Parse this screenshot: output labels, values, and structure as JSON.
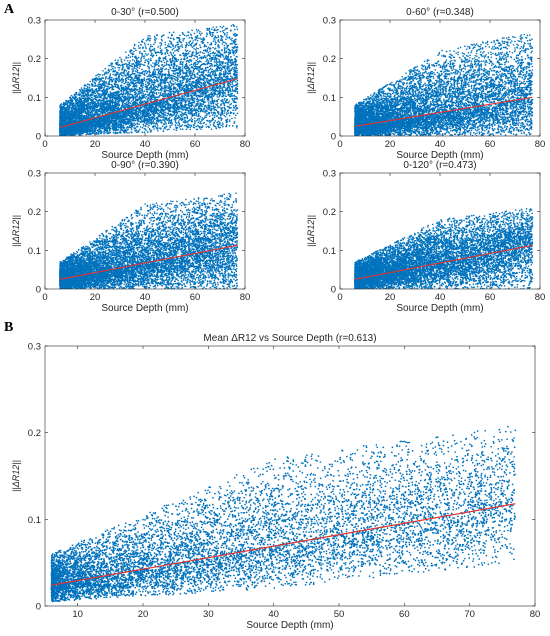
{
  "panel_labels": {
    "a": "A",
    "b": "B"
  },
  "colors": {
    "points": "#0072BD",
    "fit": "#E3342F",
    "axes": "#262626"
  },
  "chart_data": [
    {
      "id": "a1",
      "type": "scatter",
      "title": "0-30° (r=0.500)",
      "xlabel": "Source Depth (mm)",
      "ylabel": "||ΔR12||",
      "xlim": [
        0,
        80
      ],
      "ylim": [
        0,
        0.3
      ],
      "xticks": [
        0,
        20,
        40,
        60,
        80
      ],
      "yticks": [
        0,
        0.1,
        0.2,
        0.3
      ],
      "x_range": [
        6,
        77
      ],
      "n_points": 9000,
      "fit_line": {
        "x": [
          6,
          77
        ],
        "y": [
          0.022,
          0.148
        ]
      },
      "band_lower": [
        [
          6,
          0.0
        ],
        [
          77,
          0.02
        ]
      ],
      "band_upper": [
        [
          6,
          0.08
        ],
        [
          40,
          0.26
        ],
        [
          77,
          0.29
        ]
      ],
      "grid": false
    },
    {
      "id": "a2",
      "type": "scatter",
      "title": "0-60° (r=0.348)",
      "xlabel": "Source Depth (mm)",
      "ylabel": "||ΔR12||",
      "xlim": [
        0,
        80
      ],
      "ylim": [
        0,
        0.3
      ],
      "xticks": [
        0,
        20,
        40,
        60,
        80
      ],
      "yticks": [
        0,
        0.1,
        0.2,
        0.3
      ],
      "x_range": [
        6,
        77
      ],
      "n_points": 9000,
      "fit_line": {
        "x": [
          6,
          77
        ],
        "y": [
          0.025,
          0.1
        ]
      },
      "band_lower": [
        [
          6,
          0.0
        ],
        [
          77,
          0.0
        ]
      ],
      "band_upper": [
        [
          6,
          0.08
        ],
        [
          40,
          0.22
        ],
        [
          77,
          0.27
        ]
      ],
      "grid": false
    },
    {
      "id": "a3",
      "type": "scatter",
      "title": "0-90° (r=0.390)",
      "xlabel": "Source Depth (mm)",
      "ylabel": "||ΔR12||",
      "xlim": [
        0,
        80
      ],
      "ylim": [
        0,
        0.3
      ],
      "xticks": [
        0,
        20,
        40,
        60,
        80
      ],
      "yticks": [
        0,
        0.1,
        0.2,
        0.3
      ],
      "x_range": [
        6,
        77
      ],
      "n_points": 9000,
      "fit_line": {
        "x": [
          6,
          77
        ],
        "y": [
          0.025,
          0.113
        ]
      },
      "band_lower": [
        [
          6,
          0.0
        ],
        [
          77,
          0.0
        ]
      ],
      "band_upper": [
        [
          6,
          0.07
        ],
        [
          40,
          0.22
        ],
        [
          77,
          0.25
        ]
      ],
      "grid": false
    },
    {
      "id": "a4",
      "type": "scatter",
      "title": "0-120° (r=0.473)",
      "xlabel": "Source Depth (mm)",
      "ylabel": "||ΔR12||",
      "xlim": [
        0,
        80
      ],
      "ylim": [
        0,
        0.3
      ],
      "xticks": [
        0,
        20,
        40,
        60,
        80
      ],
      "yticks": [
        0,
        0.1,
        0.2,
        0.3
      ],
      "x_range": [
        6,
        77
      ],
      "n_points": 9000,
      "fit_line": {
        "x": [
          6,
          77
        ],
        "y": [
          0.025,
          0.113
        ]
      },
      "band_lower": [
        [
          6,
          0.0
        ],
        [
          77,
          0.0
        ]
      ],
      "band_upper": [
        [
          6,
          0.07
        ],
        [
          40,
          0.18
        ],
        [
          77,
          0.21
        ]
      ],
      "grid": false
    },
    {
      "id": "b",
      "type": "scatter",
      "title": "Mean ΔR12 vs Source Depth (r=0.613)",
      "xlabel": "Source Depth (mm)",
      "ylabel": "||ΔR12||",
      "xlim": [
        5,
        80
      ],
      "ylim": [
        0,
        0.3
      ],
      "xticks": [
        10,
        20,
        30,
        40,
        50,
        60,
        70,
        80
      ],
      "yticks": [
        0,
        0.1,
        0.2,
        0.3
      ],
      "x_range": [
        6,
        77
      ],
      "n_points": 9000,
      "fit_line": {
        "x": [
          6,
          77
        ],
        "y": [
          0.024,
          0.118
        ]
      },
      "band_lower": [
        [
          6,
          0.005
        ],
        [
          40,
          0.02
        ],
        [
          77,
          0.05
        ]
      ],
      "band_upper": [
        [
          6,
          0.06
        ],
        [
          40,
          0.17
        ],
        [
          77,
          0.21
        ]
      ],
      "grid": false
    }
  ]
}
